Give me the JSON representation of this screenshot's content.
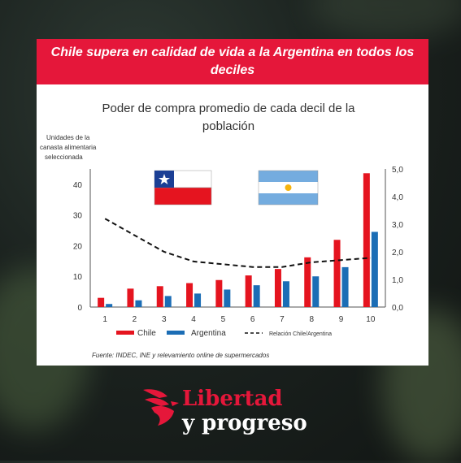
{
  "headline": "Chile supera en calidad de vida a la Argentina en todos los deciles",
  "brand": {
    "name": "Libertad",
    "sub": "y progreso",
    "color": "#e5173a"
  },
  "colors": {
    "chile": "#e5141f",
    "argentina": "#1b6db5",
    "headline_bg": "#e5173a"
  },
  "chart_data": {
    "type": "bar",
    "title_lines": [
      "Poder de compra promedio de cada decil de la",
      "población"
    ],
    "ylabel_lines": [
      "Unidades de la",
      "canasta alimentaria",
      "seleccionada"
    ],
    "categories": [
      "1",
      "2",
      "3",
      "4",
      "5",
      "6",
      "7",
      "8",
      "9",
      "10"
    ],
    "ylim": [
      0,
      45
    ],
    "y_ticks": [
      "0",
      "10",
      "20",
      "30",
      "40"
    ],
    "y2lim": [
      0,
      5
    ],
    "y2_ticks": [
      "0,0",
      "1,0",
      "2,0",
      "3,0",
      "4,0",
      "5,0"
    ],
    "series": [
      {
        "name": "Chile",
        "type": "bar",
        "axis": "left",
        "values": [
          3.0,
          6.0,
          6.8,
          7.8,
          8.8,
          10.3,
          12.4,
          16.2,
          21.9,
          43.6
        ]
      },
      {
        "name": "Argentina",
        "type": "bar",
        "axis": "left",
        "values": [
          1.0,
          2.2,
          3.6,
          4.4,
          5.7,
          7.1,
          8.4,
          10.0,
          13.0,
          24.5
        ]
      },
      {
        "name": "Relación Chile/Argentina",
        "type": "line",
        "style": "dashed",
        "axis": "right",
        "values": [
          3.2,
          2.6,
          2.0,
          1.65,
          1.55,
          1.45,
          1.45,
          1.62,
          1.7,
          1.78
        ]
      }
    ],
    "legend_position": "bottom",
    "source": "Fuente: INDEC, INE y relevamiento online de supermercados",
    "flags": [
      "chile-flag",
      "argentina-flag"
    ]
  }
}
